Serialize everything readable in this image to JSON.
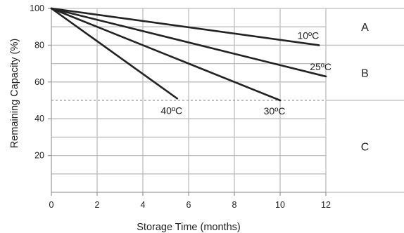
{
  "chart_data": {
    "type": "line",
    "xlabel": "Storage Time (months)",
    "ylabel": "Remaining Capacity (%)",
    "xlim": [
      0,
      12
    ],
    "ylim": [
      0,
      100
    ],
    "xticks": [
      0,
      2,
      4,
      6,
      8,
      10,
      12
    ],
    "yticks": [
      20,
      40,
      60,
      80,
      100
    ],
    "grid": true,
    "threshold": 50,
    "series": [
      {
        "name": "10ºC",
        "x": [
          0,
          11.7
        ],
        "y": [
          100,
          80
        ]
      },
      {
        "name": "25ºC",
        "x": [
          0,
          12
        ],
        "y": [
          100,
          63
        ]
      },
      {
        "name": "30ºC",
        "x": [
          0,
          10
        ],
        "y": [
          100,
          50
        ]
      },
      {
        "name": "40ºC",
        "x": [
          0,
          5.5
        ],
        "y": [
          100,
          51
        ]
      }
    ],
    "zones": [
      {
        "label": "A",
        "from": 100,
        "to": 80
      },
      {
        "label": "B",
        "from": 80,
        "to": 50
      },
      {
        "label": "C",
        "from": 50,
        "to": 0
      }
    ],
    "line_color": "#222222",
    "grid_color": "#bdbdbd",
    "threshold_color": "#9a9a9a"
  }
}
